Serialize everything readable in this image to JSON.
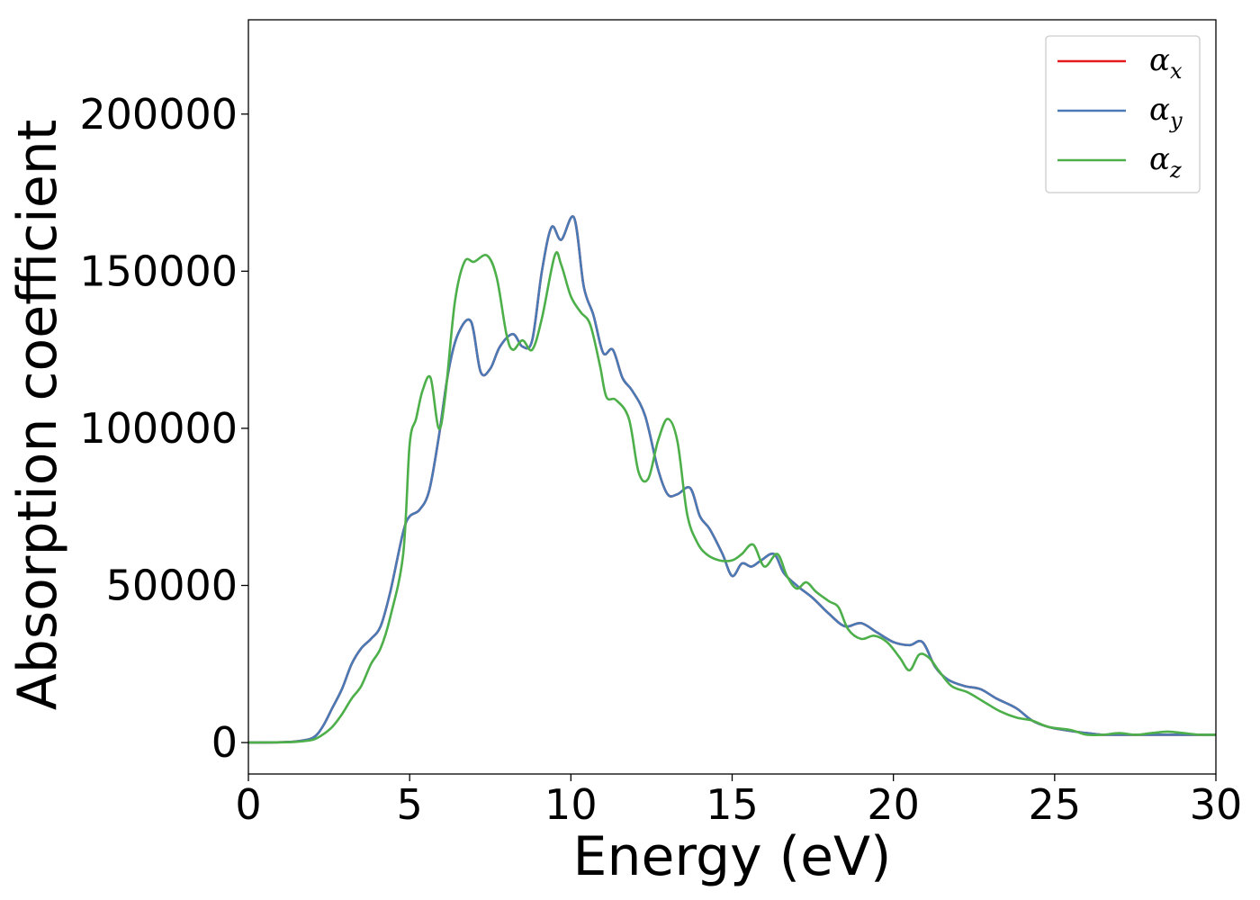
{
  "chart_data": {
    "type": "line",
    "xlabel": "Energy (eV)",
    "ylabel": "Absorption coefficient",
    "xlim": [
      0,
      30
    ],
    "ylim": [
      -10000,
      230000
    ],
    "xticks": [
      0,
      5,
      10,
      15,
      20,
      25,
      30
    ],
    "xtick_labels": [
      "0",
      "5",
      "10",
      "15",
      "20",
      "25",
      "30"
    ],
    "yticks": [
      0,
      50000,
      100000,
      150000,
      200000
    ],
    "ytick_labels": [
      "0",
      "50000",
      "100000",
      "150000",
      "200000"
    ],
    "grid": false,
    "legend_position": "top-right",
    "series": [
      {
        "name": "α",
        "subscript": "x",
        "color": "#e41a1c",
        "x": [
          0,
          1,
          1.5,
          2,
          2.3,
          2.6,
          2.9,
          3.2,
          3.5,
          3.8,
          4.1,
          4.4,
          4.8,
          5.0,
          5.3,
          5.6,
          5.9,
          6.2,
          6.5,
          6.9,
          7.2,
          7.5,
          7.8,
          8.2,
          8.5,
          8.8,
          9.1,
          9.4,
          9.7,
          10.1,
          10.4,
          10.7,
          11.0,
          11.3,
          11.6,
          11.9,
          12.3,
          12.7,
          13.0,
          13.3,
          13.7,
          14.0,
          14.3,
          14.7,
          15.0,
          15.3,
          15.6,
          15.9,
          16.3,
          16.6,
          17.0,
          17.5,
          18.0,
          18.5,
          19.0,
          19.5,
          20.0,
          20.5,
          20.9,
          21.3,
          21.7,
          22.2,
          22.7,
          23.2,
          23.8,
          24.3,
          24.8,
          25.3,
          26.0,
          26.5,
          27.0,
          27.5,
          28.0,
          28.5,
          29.0,
          29.5,
          30.0
        ],
        "y": [
          0,
          100,
          400,
          1500,
          5000,
          11000,
          17000,
          25000,
          30000,
          33000,
          37000,
          48000,
          67000,
          72000,
          74000,
          80000,
          97000,
          118000,
          130000,
          134000,
          118000,
          119000,
          126000,
          130000,
          126000,
          128000,
          150000,
          164000,
          160000,
          167000,
          145000,
          136000,
          124000,
          125000,
          116000,
          112000,
          104000,
          87000,
          79000,
          79000,
          81000,
          72000,
          68000,
          60000,
          53000,
          57000,
          56000,
          58000,
          60000,
          54000,
          50000,
          46000,
          41000,
          37000,
          38000,
          35000,
          32000,
          31000,
          32000,
          24000,
          20000,
          18000,
          17000,
          14000,
          11000,
          7000,
          5000,
          4000,
          3000,
          2500,
          2500,
          2500,
          2500,
          2500,
          2500,
          2500,
          2500
        ]
      },
      {
        "name": "α",
        "subscript": "y",
        "color": "#4a7ab5",
        "x": [
          0,
          1,
          1.5,
          2,
          2.3,
          2.6,
          2.9,
          3.2,
          3.5,
          3.8,
          4.1,
          4.4,
          4.8,
          5.0,
          5.3,
          5.6,
          5.9,
          6.2,
          6.5,
          6.9,
          7.2,
          7.5,
          7.8,
          8.2,
          8.5,
          8.8,
          9.1,
          9.4,
          9.7,
          10.1,
          10.4,
          10.7,
          11.0,
          11.3,
          11.6,
          11.9,
          12.3,
          12.7,
          13.0,
          13.3,
          13.7,
          14.0,
          14.3,
          14.7,
          15.0,
          15.3,
          15.6,
          15.9,
          16.3,
          16.6,
          17.0,
          17.5,
          18.0,
          18.5,
          19.0,
          19.5,
          20.0,
          20.5,
          20.9,
          21.3,
          21.7,
          22.2,
          22.7,
          23.2,
          23.8,
          24.3,
          24.8,
          25.3,
          26.0,
          26.5,
          27.0,
          27.5,
          28.0,
          28.5,
          29.0,
          29.5,
          30.0
        ],
        "y": [
          0,
          100,
          400,
          1500,
          5000,
          11000,
          17000,
          25000,
          30000,
          33000,
          37000,
          48000,
          67000,
          72000,
          74000,
          80000,
          97000,
          118000,
          130000,
          134000,
          118000,
          119000,
          126000,
          130000,
          126000,
          128000,
          150000,
          164000,
          160000,
          167000,
          145000,
          136000,
          124000,
          125000,
          116000,
          112000,
          104000,
          87000,
          79000,
          79000,
          81000,
          72000,
          68000,
          60000,
          53000,
          57000,
          56000,
          58000,
          60000,
          54000,
          50000,
          46000,
          41000,
          37000,
          38000,
          35000,
          32000,
          31000,
          32000,
          24000,
          20000,
          18000,
          17000,
          14000,
          11000,
          7000,
          5000,
          4000,
          3000,
          2500,
          2500,
          2500,
          2500,
          2500,
          2500,
          2500,
          2500
        ]
      },
      {
        "name": "α",
        "subscript": "z",
        "color": "#4daf4a",
        "x": [
          0,
          1,
          1.5,
          2,
          2.3,
          2.6,
          2.9,
          3.2,
          3.5,
          3.8,
          4.1,
          4.4,
          4.8,
          5.0,
          5.2,
          5.4,
          5.65,
          5.9,
          6.1,
          6.4,
          6.7,
          7.0,
          7.4,
          7.7,
          8.0,
          8.2,
          8.5,
          8.8,
          9.1,
          9.5,
          9.7,
          10.0,
          10.3,
          10.6,
          10.9,
          11.1,
          11.4,
          11.8,
          12.1,
          12.4,
          12.7,
          13.0,
          13.3,
          13.6,
          13.9,
          14.2,
          14.6,
          15.0,
          15.3,
          15.65,
          16.0,
          16.4,
          16.7,
          17.0,
          17.3,
          17.6,
          18.0,
          18.3,
          18.6,
          19.0,
          19.4,
          19.8,
          20.2,
          20.5,
          20.8,
          21.1,
          21.4,
          21.8,
          22.3,
          22.8,
          23.3,
          23.8,
          24.3,
          24.8,
          25.5,
          26.0,
          26.5,
          27.0,
          27.5,
          28.0,
          28.5,
          29.0,
          29.5,
          30.0
        ],
        "y": [
          0,
          80,
          250,
          900,
          2500,
          5000,
          9000,
          14000,
          18000,
          25000,
          30000,
          40000,
          60000,
          95000,
          103000,
          112000,
          116000,
          100000,
          110000,
          140000,
          153000,
          153000,
          155000,
          148000,
          130000,
          125000,
          128000,
          125000,
          135000,
          155000,
          152000,
          142000,
          137000,
          133000,
          120000,
          110000,
          109000,
          103000,
          86000,
          84000,
          96000,
          103000,
          96000,
          73000,
          64000,
          60000,
          58000,
          58000,
          60000,
          63000,
          56000,
          60000,
          53000,
          49000,
          51000,
          48000,
          45000,
          43000,
          36000,
          33000,
          34000,
          32000,
          27000,
          23000,
          28000,
          27000,
          23000,
          18000,
          16000,
          13000,
          10000,
          8000,
          7000,
          5000,
          4000,
          2500,
          2500,
          3000,
          2500,
          3000,
          3500,
          3000,
          2500,
          2500
        ]
      }
    ]
  }
}
